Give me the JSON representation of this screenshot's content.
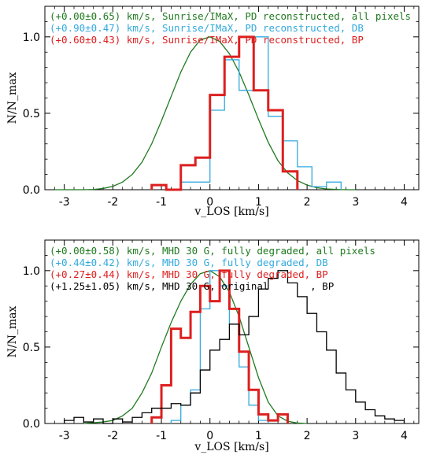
{
  "chart_data": [
    {
      "type": "line",
      "title": "",
      "xlabel": "v_LOS [km/s]",
      "ylabel": "N/N_max",
      "xlim": [
        -3.4,
        4.3
      ],
      "ylim": [
        0,
        1.2
      ],
      "x_ticks": [
        -3,
        -2,
        -1,
        0,
        1,
        2,
        3,
        4
      ],
      "y_ticks": [
        0.0,
        0.5,
        1.0
      ],
      "x_tick_labels": [
        "-3",
        "-2",
        "-1",
        "0",
        "1",
        "2",
        "3",
        "4"
      ],
      "y_tick_labels": [
        "0.0",
        "0.5",
        "1.0"
      ],
      "legend_position": "top-left",
      "series": [
        {
          "name": "(+0.00±0.65) km/s, Sunrise/IMaX, PD reconstructed, all pixels",
          "color": "#1f7a1f",
          "style": "smooth",
          "x": [
            -3.2,
            -3.0,
            -2.8,
            -2.6,
            -2.4,
            -2.2,
            -2.0,
            -1.8,
            -1.6,
            -1.4,
            -1.2,
            -1.0,
            -0.8,
            -0.6,
            -0.4,
            -0.2,
            0.0,
            0.2,
            0.4,
            0.6,
            0.8,
            1.0,
            1.2,
            1.4,
            1.6,
            1.8,
            2.0,
            2.2,
            2.4,
            2.6,
            2.8,
            3.0
          ],
          "values": [
            0.0,
            0.0,
            0.0,
            0.0,
            0.002,
            0.008,
            0.022,
            0.05,
            0.1,
            0.18,
            0.3,
            0.45,
            0.61,
            0.77,
            0.9,
            0.98,
            1.0,
            0.97,
            0.89,
            0.77,
            0.62,
            0.46,
            0.31,
            0.19,
            0.11,
            0.06,
            0.03,
            0.013,
            0.005,
            0.002,
            0.0,
            0.0
          ]
        },
        {
          "name": "(+0.90±0.47) km/s, Sunrise/IMaX, PD reconstructed, DB",
          "color": "#33aadd",
          "style": "step",
          "edges": [
            -0.6,
            -0.3,
            0.0,
            0.3,
            0.6,
            0.9,
            1.2,
            1.5,
            1.8,
            2.1,
            2.4,
            2.7
          ],
          "values": [
            0.05,
            0.05,
            0.52,
            0.85,
            0.65,
            1.0,
            0.48,
            0.32,
            0.15,
            0.02,
            0.05
          ]
        },
        {
          "name": "(+0.60±0.43) km/s, Sunrise/IMaX, PD reconstructed, BP",
          "color": "#dd1f1f",
          "style": "step",
          "edges": [
            -1.2,
            -0.9,
            -0.6,
            -0.3,
            0.0,
            0.3,
            0.6,
            0.9,
            1.2,
            1.5,
            1.8
          ],
          "values": [
            0.03,
            0.0,
            0.16,
            0.21,
            0.62,
            0.87,
            1.0,
            0.65,
            0.52,
            0.12
          ]
        }
      ]
    },
    {
      "type": "line",
      "title": "",
      "xlabel": "v_LOS [km/s]",
      "ylabel": "N/N_max",
      "xlim": [
        -3.4,
        4.3
      ],
      "ylim": [
        0,
        1.2
      ],
      "x_ticks": [
        -3,
        -2,
        -1,
        0,
        1,
        2,
        3,
        4
      ],
      "y_ticks": [
        0.0,
        0.5,
        1.0
      ],
      "x_tick_labels": [
        "-3",
        "-2",
        "-1",
        "0",
        "1",
        "2",
        "3",
        "4"
      ],
      "y_tick_labels": [
        "0.0",
        "0.5",
        "1.0"
      ],
      "legend_position": "top-left",
      "series": [
        {
          "name": "(+0.00±0.58) km/s, MHD 30 G, fully degraded, all pixels",
          "color": "#1f7a1f",
          "style": "smooth",
          "x": [
            -2.6,
            -2.4,
            -2.2,
            -2.0,
            -1.8,
            -1.6,
            -1.4,
            -1.2,
            -1.0,
            -0.8,
            -0.6,
            -0.4,
            -0.2,
            0.0,
            0.2,
            0.4,
            0.6,
            0.8,
            1.0,
            1.2,
            1.4,
            1.6,
            1.8,
            2.0
          ],
          "values": [
            0.0,
            0.005,
            0.01,
            0.02,
            0.05,
            0.1,
            0.2,
            0.33,
            0.5,
            0.66,
            0.8,
            0.91,
            0.98,
            1.0,
            0.96,
            0.86,
            0.7,
            0.5,
            0.3,
            0.14,
            0.05,
            0.015,
            0.003,
            0.0
          ]
        },
        {
          "name": "(+0.44±0.42) km/s, MHD 30 G, fully degraded, DB",
          "color": "#33aadd",
          "style": "step",
          "edges": [
            -0.8,
            -0.6,
            -0.4,
            -0.2,
            0.0,
            0.2,
            0.4,
            0.6,
            0.8,
            1.0,
            1.2
          ],
          "values": [
            0.02,
            0.12,
            0.22,
            0.75,
            1.0,
            0.9,
            0.65,
            0.37,
            0.12,
            0.02
          ]
        },
        {
          "name": "(+0.27±0.44) km/s, MHD 30 G, fully degraded, BP",
          "color": "#dd1f1f",
          "style": "step",
          "edges": [
            -1.2,
            -1.0,
            -0.8,
            -0.6,
            -0.4,
            -0.2,
            0.0,
            0.2,
            0.4,
            0.6,
            0.8,
            1.0,
            1.2,
            1.4,
            1.6
          ],
          "values": [
            0.04,
            0.25,
            0.62,
            0.56,
            0.73,
            0.9,
            0.8,
            1.0,
            0.75,
            0.47,
            0.22,
            0.06,
            0.02,
            0.06
          ]
        },
        {
          "name": "(+1.25±1.05) km/s, MHD 30 G, original       , BP",
          "color": "#000000",
          "style": "step",
          "edges": [
            -3.0,
            -2.8,
            -2.6,
            -2.4,
            -2.2,
            -2.0,
            -1.8,
            -1.6,
            -1.4,
            -1.2,
            -1.0,
            -0.8,
            -0.6,
            -0.4,
            -0.2,
            0.0,
            0.2,
            0.4,
            0.6,
            0.8,
            1.0,
            1.2,
            1.4,
            1.6,
            1.8,
            2.0,
            2.2,
            2.4,
            2.6,
            2.8,
            3.0,
            3.2,
            3.4,
            3.6,
            3.8,
            4.0
          ],
          "values": [
            0.02,
            0.04,
            0.01,
            0.03,
            0.0,
            0.03,
            0.01,
            0.04,
            0.07,
            0.1,
            0.1,
            0.13,
            0.12,
            0.2,
            0.35,
            0.48,
            0.55,
            0.65,
            0.58,
            0.7,
            0.88,
            0.95,
            1.0,
            0.92,
            0.83,
            0.72,
            0.6,
            0.48,
            0.33,
            0.22,
            0.14,
            0.09,
            0.05,
            0.03,
            0.02
          ]
        }
      ]
    }
  ]
}
